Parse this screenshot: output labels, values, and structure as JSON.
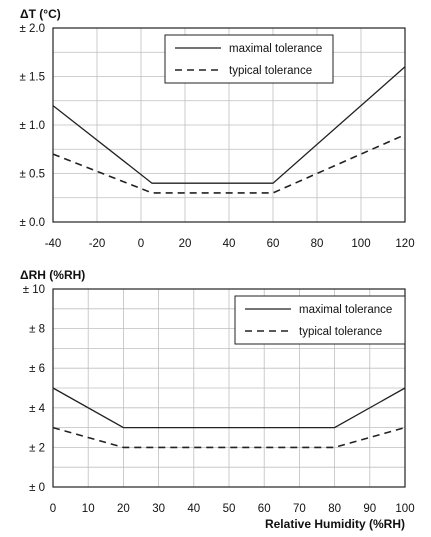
{
  "chart_data": [
    {
      "type": "line",
      "title": "",
      "ylabel": "ΔT (°C)",
      "xlabel": "",
      "x_ticks": [
        -40,
        -20,
        0,
        20,
        40,
        60,
        80,
        100,
        120
      ],
      "x_tick_labels": [
        "-40",
        "-20",
        "0",
        "20",
        "40",
        "60",
        "80",
        "100",
        "120"
      ],
      "y_ticks": [
        0,
        0.5,
        1,
        1.5,
        2
      ],
      "y_tick_labels": [
        "± 0.0",
        "± 0.5",
        "± 1.0",
        "± 1.5",
        "± 2.0"
      ],
      "xlim": [
        -40,
        120
      ],
      "ylim": [
        0,
        2
      ],
      "grid": true,
      "legend_position": "top-center",
      "series": [
        {
          "name": "maximal tolerance",
          "style": "solid",
          "x": [
            -40,
            5,
            60,
            120
          ],
          "y": [
            1.2,
            0.4,
            0.4,
            1.6
          ]
        },
        {
          "name": "typical tolerance",
          "style": "dashed",
          "x": [
            -40,
            5,
            60,
            120
          ],
          "y": [
            0.7,
            0.3,
            0.3,
            0.9
          ]
        }
      ]
    },
    {
      "type": "line",
      "title": "",
      "ylabel": "ΔRH (%RH)",
      "xlabel": "Relative Humidity (%RH)",
      "x_ticks": [
        0,
        10,
        20,
        30,
        40,
        50,
        60,
        70,
        80,
        90,
        100
      ],
      "x_tick_labels": [
        "0",
        "10",
        "20",
        "30",
        "40",
        "50",
        "60",
        "70",
        "80",
        "90",
        "100"
      ],
      "y_ticks": [
        0,
        2,
        4,
        6,
        8,
        10
      ],
      "y_tick_labels": [
        "± 0",
        "± 2",
        "± 4",
        "± 6",
        "± 8",
        "± 10"
      ],
      "xlim": [
        0,
        100
      ],
      "ylim": [
        0,
        10
      ],
      "grid": true,
      "legend_position": "top-right",
      "series": [
        {
          "name": "maximal tolerance",
          "style": "solid",
          "x": [
            0,
            20,
            80,
            100
          ],
          "y": [
            5,
            3,
            3,
            5
          ]
        },
        {
          "name": "typical tolerance",
          "style": "dashed",
          "x": [
            0,
            20,
            80,
            100
          ],
          "y": [
            3,
            2,
            2,
            3
          ]
        }
      ]
    }
  ]
}
